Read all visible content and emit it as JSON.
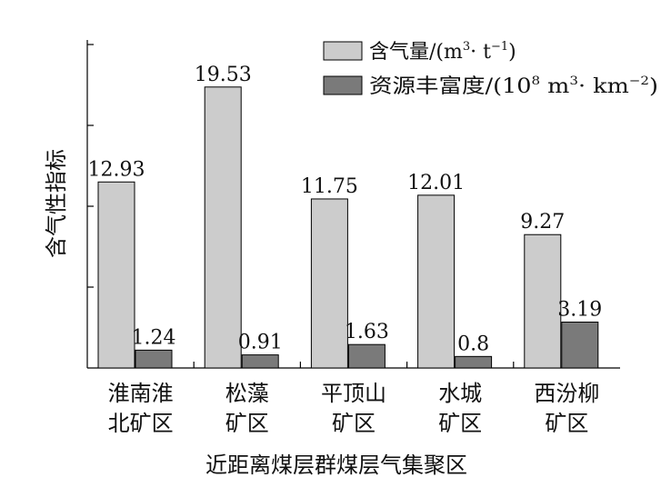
{
  "chart_data": {
    "type": "bar",
    "title": "",
    "xlabel": "近距离煤层群煤层气集聚区",
    "ylabel": "含气性指标",
    "ylim": [
      0,
      22.8
    ],
    "categories": [
      [
        "淮南淮",
        "北矿区"
      ],
      [
        "松藻",
        "矿区"
      ],
      [
        "平顶山",
        "矿区"
      ],
      [
        "水城",
        "矿区"
      ],
      [
        "西汾柳",
        "矿区"
      ]
    ],
    "series": [
      {
        "name": "含气量/(m³·t⁻¹)",
        "name_parts": {
          "base": "含气量/(m",
          "sup1": "3",
          "mid": "· t",
          "sup2": "−1",
          "end": ")"
        },
        "color": "#cccccc",
        "values": [
          12.93,
          19.53,
          11.75,
          12.01,
          9.27
        ],
        "labels": [
          "12.93",
          "19.53",
          "11.75",
          "12.01",
          "9.27"
        ]
      },
      {
        "name": "资源丰富度/(10⁸ m³·km⁻²)",
        "name_parts": {
          "base": "资源丰富度/(10",
          "sup1": "8",
          "mid": " m",
          "sup2": "3",
          "mid2": "· km",
          "sup3": "−2",
          "end": ")"
        },
        "color": "#7a7a7a",
        "values": [
          1.24,
          0.91,
          1.63,
          0.8,
          3.19
        ],
        "labels": [
          "1.24",
          "0.91",
          "1.63",
          "0.8",
          "3.19"
        ]
      }
    ],
    "grid": false,
    "legend_position": "top-right"
  }
}
